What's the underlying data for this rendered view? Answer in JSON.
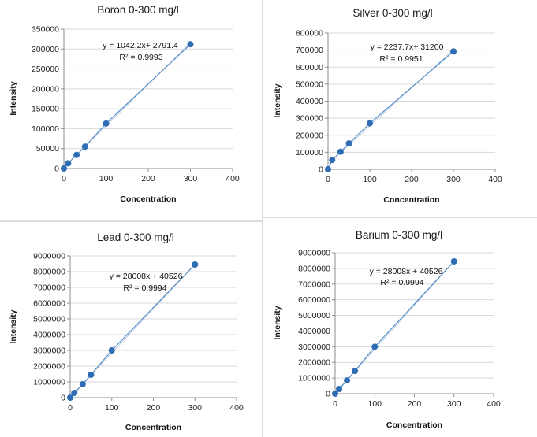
{
  "colors": {
    "marker": "#2e6db4",
    "trend": "#5b8fc9",
    "grid": "#d9d9d9",
    "axis": "#8c8c8c"
  },
  "chart_data": [
    {
      "type": "scatter",
      "title": "Boron 0-300 mg/l",
      "xlabel": "Concentration",
      "ylabel": "Intensity",
      "x": [
        0,
        10,
        30,
        50,
        100,
        300
      ],
      "y": [
        0,
        13000,
        34000,
        55000,
        113000,
        312000
      ],
      "xlim": [
        0,
        400
      ],
      "ylim": [
        0,
        350000
      ],
      "xticks": [
        0,
        100,
        200,
        300,
        400
      ],
      "yticks": [
        0,
        50000,
        100000,
        150000,
        200000,
        250000,
        300000,
        350000
      ],
      "ytick_labels": [
        "0",
        "50000",
        "100000",
        "150000",
        "200000",
        "250000",
        "300000",
        "350000"
      ],
      "equation": "y = 1042.2x+ 2791.4",
      "r2": "R² = 0.9993",
      "trendline": {
        "slope": 1042.2,
        "intercept": 2791.4
      }
    },
    {
      "type": "scatter",
      "title": "Silver 0-300  mg/l",
      "xlabel": "Concentration",
      "ylabel": "Intensity",
      "x": [
        0,
        10,
        30,
        50,
        100,
        300
      ],
      "y": [
        0,
        55000,
        103000,
        152000,
        270000,
        692000
      ],
      "xlim": [
        0,
        400
      ],
      "ylim": [
        0,
        800000
      ],
      "xticks": [
        0,
        100,
        200,
        300,
        400
      ],
      "yticks": [
        0,
        100000,
        200000,
        300000,
        400000,
        500000,
        600000,
        700000,
        800000
      ],
      "ytick_labels": [
        "0",
        "100000",
        "200000",
        "300000",
        "400000",
        "500000",
        "600000",
        "700000",
        "800000"
      ],
      "equation": "y = 2237.7x+ 31200",
      "r2": "R² = 0.9951",
      "trendline": {
        "slope": 2237.7,
        "intercept": 31200
      }
    },
    {
      "type": "scatter",
      "title": "Lead 0-300  mg/l",
      "xlabel": "Concentration",
      "ylabel": "Intensity",
      "x": [
        0,
        10,
        30,
        50,
        100,
        300
      ],
      "y": [
        0,
        300000,
        850000,
        1450000,
        3000000,
        8450000
      ],
      "xlim": [
        0,
        400
      ],
      "ylim": [
        0,
        9000000
      ],
      "xticks": [
        0,
        100,
        200,
        300,
        400
      ],
      "yticks": [
        0,
        1000000,
        2000000,
        3000000,
        4000000,
        5000000,
        6000000,
        7000000,
        8000000,
        9000000
      ],
      "ytick_labels": [
        "0",
        "1000000",
        "2000000",
        "3000000",
        "4000000",
        "5000000",
        "6000000",
        "7000000",
        "8000000",
        "9000000"
      ],
      "equation": "y = 28008x + 40526",
      "r2": "R² = 0.9994",
      "trendline": {
        "slope": 28008,
        "intercept": 40526
      }
    },
    {
      "type": "scatter",
      "title": "Barium 0-300 mg/l",
      "xlabel": "Concentration",
      "ylabel": "Intensity",
      "x": [
        0,
        10,
        30,
        50,
        100,
        300
      ],
      "y": [
        0,
        300000,
        850000,
        1450000,
        3000000,
        8450000
      ],
      "xlim": [
        0,
        400
      ],
      "ylim": [
        0,
        9000000
      ],
      "xticks": [
        0,
        100,
        200,
        300,
        400
      ],
      "yticks": [
        0,
        1000000,
        2000000,
        3000000,
        4000000,
        5000000,
        6000000,
        7000000,
        8000000,
        9000000
      ],
      "ytick_labels": [
        "0",
        "1000000",
        "2000000",
        "3000000",
        "4000000",
        "5000000",
        "6000000",
        "7000000",
        "8000000",
        "9000000"
      ],
      "equation": "y = 28008x + 40526",
      "r2": "R² = 0.9994",
      "trendline": {
        "slope": 28008,
        "intercept": 40526
      }
    }
  ]
}
